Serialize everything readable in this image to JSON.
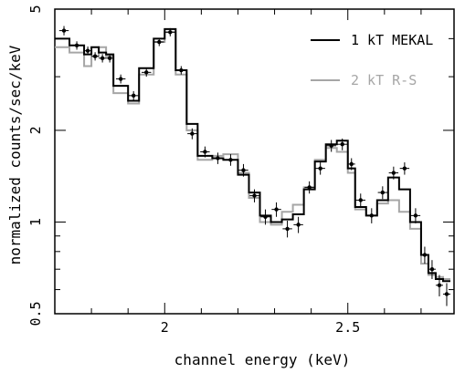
{
  "chart_data": {
    "type": "step-histogram",
    "xlabel": "channel energy (keV)",
    "ylabel": "normalized counts/sec/keV",
    "xlim": [
      1.7,
      2.79
    ],
    "ylim": [
      0.5,
      5
    ],
    "yscale": "log",
    "xticks": [
      2,
      2.5
    ],
    "xtick_labels": [
      "2",
      "2.5"
    ],
    "yticks": [
      0.5,
      1,
      2,
      5
    ],
    "ytick_labels": [
      "0.5",
      "1",
      "2",
      "5"
    ],
    "legend_position": "top-right",
    "bin_edges": [
      1.7,
      1.74,
      1.78,
      1.8,
      1.82,
      1.84,
      1.86,
      1.9,
      1.93,
      1.97,
      2.0,
      2.03,
      2.06,
      2.09,
      2.13,
      2.16,
      2.2,
      2.23,
      2.26,
      2.29,
      2.32,
      2.35,
      2.38,
      2.41,
      2.44,
      2.47,
      2.5,
      2.52,
      2.55,
      2.58,
      2.61,
      2.64,
      2.67,
      2.7,
      2.72,
      2.74,
      2.76,
      2.78
    ],
    "series": [
      {
        "name": "1 kT MEKAL",
        "color": "#000000",
        "style": "step",
        "values": [
          4.0,
          3.8,
          3.55,
          3.75,
          3.6,
          3.55,
          2.8,
          2.5,
          3.2,
          4.0,
          4.3,
          3.15,
          2.1,
          1.65,
          1.62,
          1.6,
          1.43,
          1.25,
          1.05,
          1.0,
          1.02,
          1.06,
          1.28,
          1.58,
          1.8,
          1.85,
          1.5,
          1.12,
          1.05,
          1.18,
          1.4,
          1.28,
          1.0,
          0.78,
          0.68,
          0.65,
          0.64
        ]
      },
      {
        "name": "2 kT R-S",
        "color": "#a6a6a6",
        "style": "step",
        "values": [
          3.75,
          3.6,
          3.25,
          3.5,
          3.75,
          3.5,
          2.65,
          2.45,
          3.05,
          3.9,
          4.2,
          3.05,
          2.0,
          1.6,
          1.65,
          1.67,
          1.45,
          1.2,
          1.0,
          0.98,
          1.08,
          1.14,
          1.3,
          1.6,
          1.75,
          1.7,
          1.45,
          1.1,
          1.05,
          1.15,
          1.18,
          1.08,
          0.95,
          0.73,
          0.67,
          0.66,
          0.65
        ]
      }
    ],
    "data_points": {
      "name": "data",
      "x": [
        1.725,
        1.76,
        1.79,
        1.81,
        1.83,
        1.85,
        1.88,
        1.915,
        1.95,
        1.985,
        2.015,
        2.045,
        2.075,
        2.11,
        2.145,
        2.18,
        2.215,
        2.245,
        2.275,
        2.305,
        2.335,
        2.365,
        2.395,
        2.425,
        2.455,
        2.485,
        2.51,
        2.535,
        2.565,
        2.595,
        2.625,
        2.655,
        2.685,
        2.71,
        2.73,
        2.75,
        2.77
      ],
      "y": [
        4.25,
        3.8,
        3.65,
        3.5,
        3.45,
        3.45,
        2.95,
        2.6,
        3.1,
        3.9,
        4.2,
        3.15,
        1.95,
        1.7,
        1.62,
        1.6,
        1.48,
        1.22,
        1.04,
        1.1,
        0.95,
        0.98,
        1.3,
        1.5,
        1.78,
        1.8,
        1.55,
        1.18,
        1.05,
        1.25,
        1.45,
        1.5,
        1.05,
        0.78,
        0.7,
        0.62,
        0.58
      ],
      "yerr": [
        0.15,
        0.12,
        0.12,
        0.11,
        0.11,
        0.11,
        0.1,
        0.09,
        0.1,
        0.12,
        0.13,
        0.1,
        0.08,
        0.07,
        0.07,
        0.07,
        0.07,
        0.06,
        0.06,
        0.06,
        0.06,
        0.06,
        0.06,
        0.07,
        0.08,
        0.08,
        0.07,
        0.06,
        0.06,
        0.06,
        0.07,
        0.07,
        0.06,
        0.05,
        0.05,
        0.05,
        0.05
      ],
      "xerr": [
        0.013,
        0.013,
        0.01,
        0.01,
        0.01,
        0.01,
        0.013,
        0.013,
        0.013,
        0.013,
        0.013,
        0.013,
        0.013,
        0.013,
        0.013,
        0.013,
        0.013,
        0.013,
        0.013,
        0.013,
        0.013,
        0.013,
        0.013,
        0.013,
        0.013,
        0.013,
        0.01,
        0.013,
        0.013,
        0.013,
        0.013,
        0.013,
        0.013,
        0.01,
        0.01,
        0.01,
        0.01
      ]
    }
  }
}
